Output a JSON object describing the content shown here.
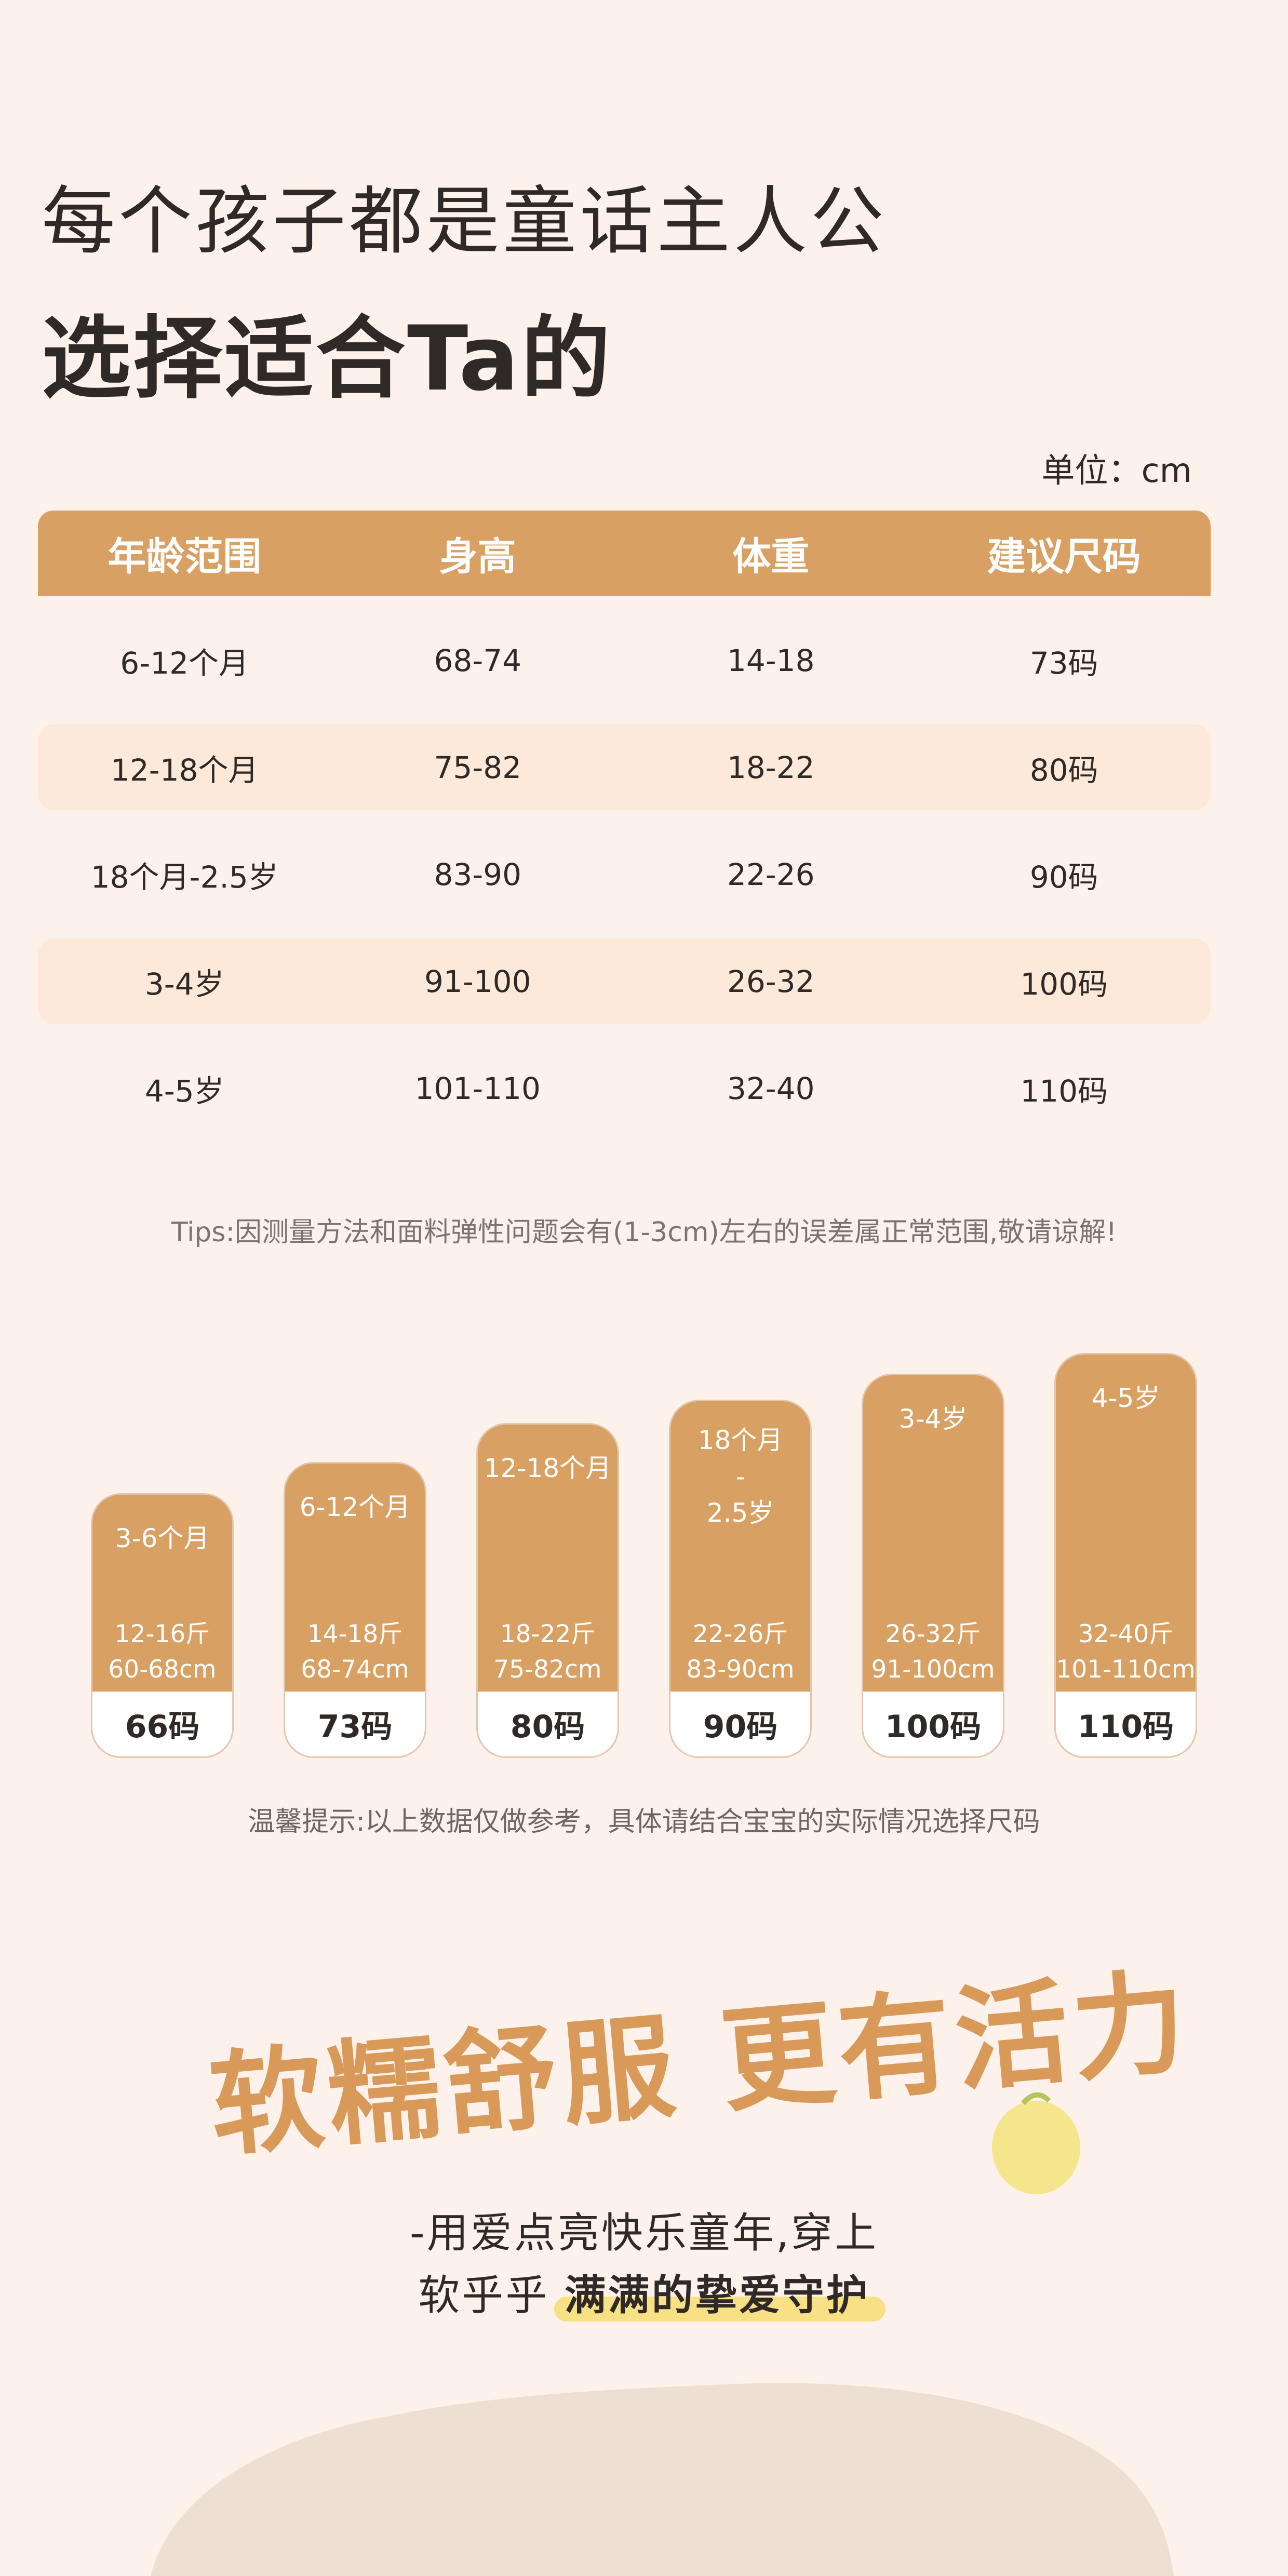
{
  "heading": {
    "line1": "每个孩子都是童话主人公",
    "line2": "选择适合Ta的"
  },
  "unit_label": "单位：cm",
  "table": {
    "headers": [
      "年龄范围",
      "身高",
      "体重",
      "建议尺码"
    ],
    "rows": [
      [
        "6-12个月",
        "68-74",
        "14-18",
        "73码"
      ],
      [
        "12-18个月",
        "75-82",
        "18-22",
        "80码"
      ],
      [
        "18个月-2.5岁",
        "83-90",
        "22-26",
        "90码"
      ],
      [
        "3-4岁",
        "91-100",
        "26-32",
        "100码"
      ],
      [
        "4-5岁",
        "101-110",
        "32-40",
        "110码"
      ]
    ]
  },
  "tips": "Tips:因测量方法和面料弹性问题会有(1-3cm)左右的误差属正常范围,敬请谅解!",
  "cards": [
    {
      "age": "3-6个月",
      "weight": "12-16斤",
      "height": "60-68cm",
      "size": "66码"
    },
    {
      "age": "6-12个月",
      "weight": "14-18斤",
      "height": "68-74cm",
      "size": "73码"
    },
    {
      "age": "12-18个月",
      "weight": "18-22斤",
      "height": "75-82cm",
      "size": "80码"
    },
    {
      "age": "18个月\n-\n2.5岁",
      "weight": "22-26斤",
      "height": "83-90cm",
      "size": "90码"
    },
    {
      "age": "3-4岁",
      "weight": "26-32斤",
      "height": "91-100cm",
      "size": "100码"
    },
    {
      "age": "4-5岁",
      "weight": "32-40斤",
      "height": "101-110cm",
      "size": "110码"
    }
  ],
  "note": "温馨提示:以上数据仅做参考，具体请结合宝宝的实际情况选择尺码",
  "slogan": "软糯舒服 更有活力",
  "subline1": "-用爱点亮快乐童年,穿上",
  "subline2_prefix": "软乎乎 ",
  "subline2_highlight": "满满的挚爱守护",
  "colors": {
    "accent": "#d9a064",
    "row_alt": "#fde9d9",
    "background": "#fdf1ec",
    "highlight": "#f7e184",
    "blob": "#ede0d2"
  }
}
